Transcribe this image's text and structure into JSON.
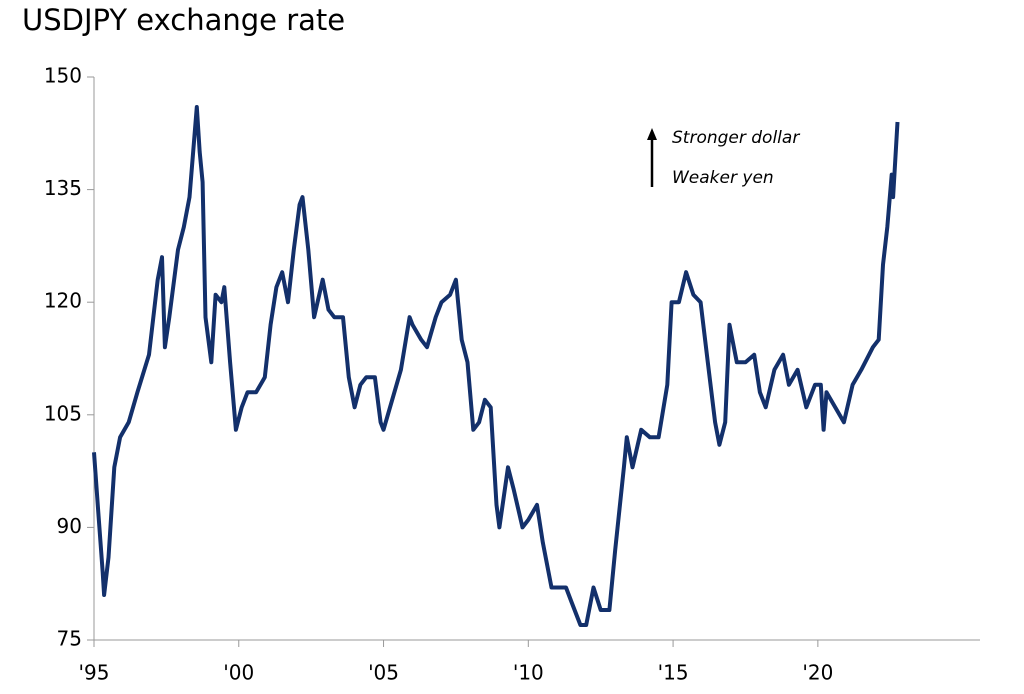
{
  "chart_data": {
    "type": "line",
    "title": "USDJPY exchange rate",
    "annotations": [
      "Stronger dollar",
      "Weaker yen"
    ],
    "x": [
      1995.0,
      1995.15,
      1995.3,
      1995.35,
      1995.5,
      1995.7,
      1995.9,
      1996.2,
      1996.5,
      1996.9,
      1997.2,
      1997.35,
      1997.45,
      1997.6,
      1997.9,
      1998.1,
      1998.3,
      1998.55,
      1998.65,
      1998.75,
      1998.85,
      1998.95,
      1999.05,
      1999.2,
      1999.4,
      1999.5,
      1999.7,
      1999.9,
      2000.1,
      2000.3,
      2000.6,
      2000.9,
      2001.1,
      2001.3,
      2001.5,
      2001.7,
      2001.9,
      2002.1,
      2002.2,
      2002.4,
      2002.6,
      2002.9,
      2003.1,
      2003.3,
      2003.6,
      2003.8,
      2004.0,
      2004.2,
      2004.4,
      2004.7,
      2004.9,
      2005.0,
      2005.3,
      2005.6,
      2005.9,
      2006.0,
      2006.3,
      2006.5,
      2006.8,
      2007.0,
      2007.3,
      2007.5,
      2007.7,
      2007.9,
      2008.1,
      2008.3,
      2008.5,
      2008.7,
      2008.9,
      2009.0,
      2009.3,
      2009.5,
      2009.8,
      2010.0,
      2010.3,
      2010.5,
      2010.8,
      2011.0,
      2011.3,
      2011.5,
      2011.8,
      2012.0,
      2012.25,
      2012.5,
      2012.8,
      2013.0,
      2013.3,
      2013.4,
      2013.6,
      2013.9,
      2014.2,
      2014.5,
      2014.8,
      2014.95,
      2015.2,
      2015.45,
      2015.7,
      2015.95,
      2016.2,
      2016.45,
      2016.6,
      2016.8,
      2016.95,
      2017.2,
      2017.5,
      2017.8,
      2018.0,
      2018.2,
      2018.5,
      2018.8,
      2019.0,
      2019.3,
      2019.6,
      2019.9,
      2020.1,
      2020.2,
      2020.3,
      2020.6,
      2020.9,
      2021.2,
      2021.5,
      2021.9,
      2022.1,
      2022.25,
      2022.4,
      2022.55,
      2022.6,
      2022.75
    ],
    "series": [
      {
        "name": "USDJPY",
        "color": "#13306b",
        "values": [
          100,
          92,
          84,
          81,
          86,
          98,
          102,
          104,
          108,
          113,
          123,
          126,
          114,
          118,
          127,
          130,
          134,
          146,
          140,
          136,
          118,
          115,
          112,
          121,
          120,
          122,
          112,
          103,
          106,
          108,
          108,
          110,
          117,
          122,
          124,
          120,
          127,
          133,
          134,
          127,
          118,
          123,
          119,
          118,
          118,
          110,
          106,
          109,
          110,
          110,
          104,
          103,
          107,
          111,
          118,
          117,
          115,
          114,
          118,
          120,
          121,
          123,
          115,
          112,
          103,
          104,
          107,
          106,
          93,
          90,
          98,
          95,
          90,
          91,
          93,
          88,
          82,
          82,
          82,
          80,
          77,
          77,
          82,
          79,
          79,
          87,
          98,
          102,
          98,
          103,
          102,
          102,
          109,
          120,
          120,
          124,
          121,
          120,
          112,
          104,
          101,
          104,
          117,
          112,
          112,
          113,
          108,
          106,
          111,
          113,
          109,
          111,
          106,
          109,
          109,
          103,
          108,
          106,
          104,
          109,
          111,
          114,
          115,
          125,
          130,
          137,
          134,
          144
        ]
      }
    ],
    "xlim": [
      1995,
      2025.6
    ],
    "xticks": [
      {
        "value": 1995,
        "label": "'95"
      },
      {
        "value": 2000,
        "label": "'00"
      },
      {
        "value": 2005,
        "label": "'05"
      },
      {
        "value": 2010,
        "label": "'10"
      },
      {
        "value": 2015,
        "label": "'15"
      },
      {
        "value": 2020,
        "label": "'20"
      }
    ],
    "ylim": [
      75,
      150
    ],
    "yticks": [
      75,
      90,
      105,
      120,
      135,
      150
    ]
  }
}
